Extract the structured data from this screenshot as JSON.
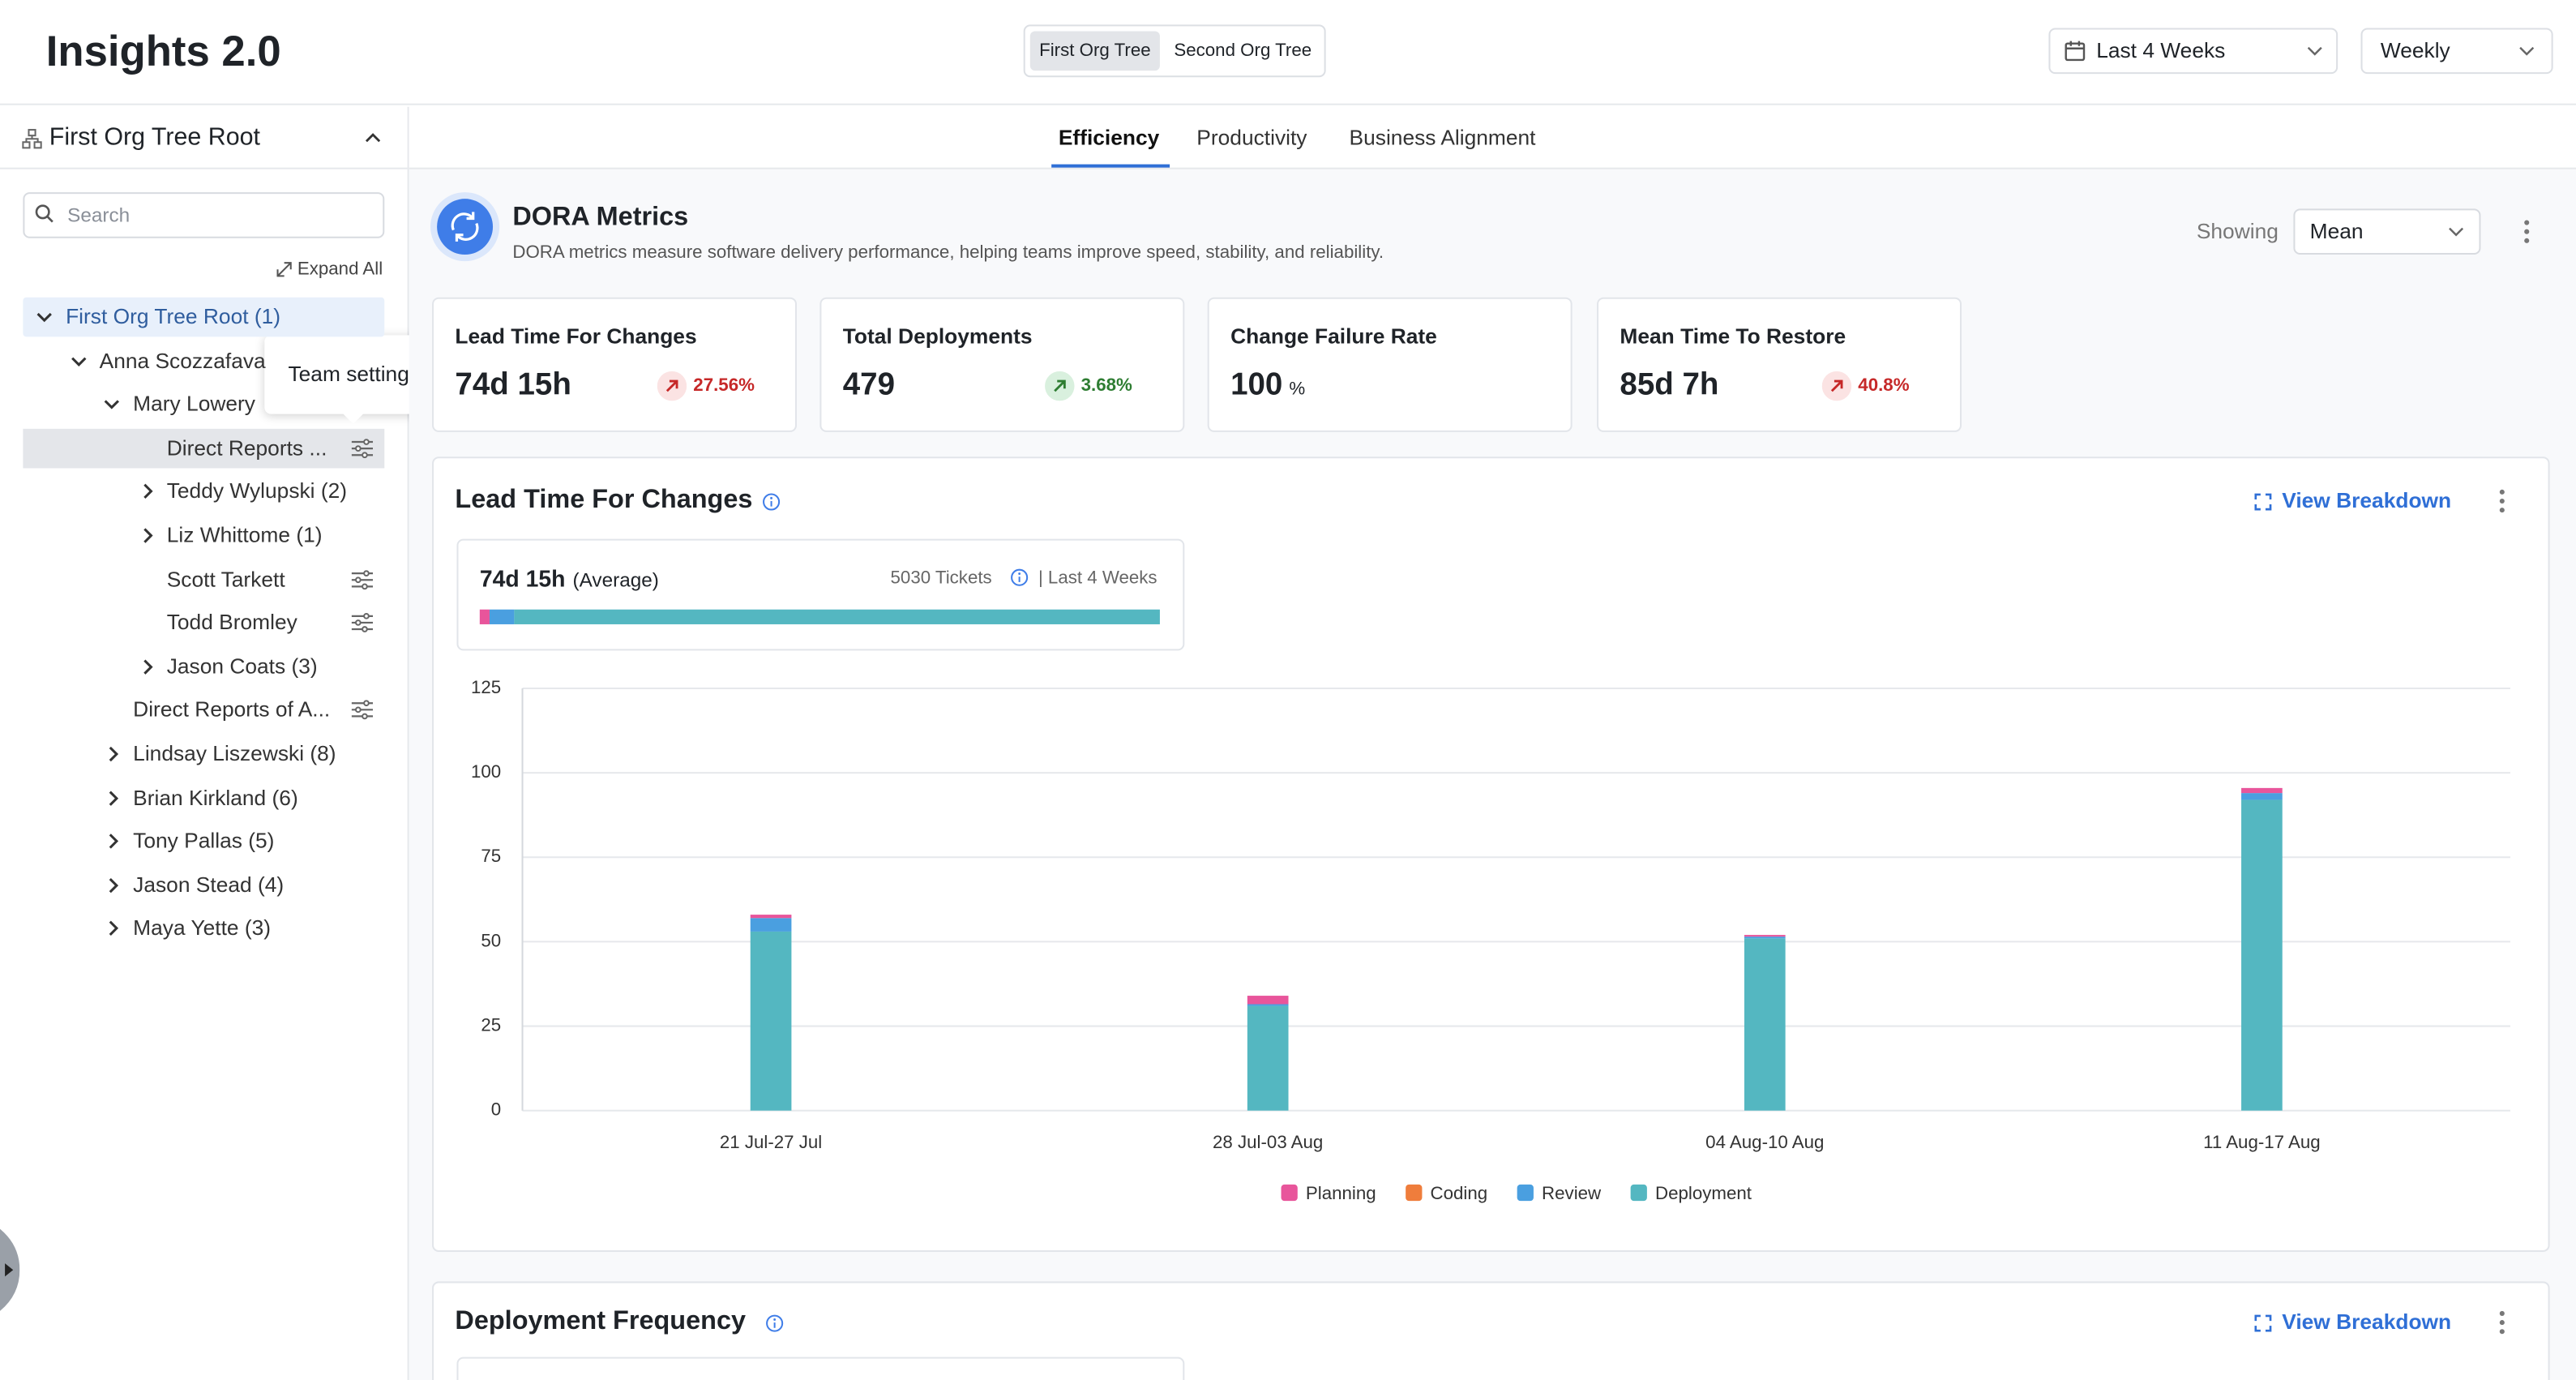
{
  "header": {
    "title": "Insights 2.0",
    "org_toggle": [
      "First Org Tree",
      "Second Org Tree"
    ],
    "date_range": "Last 4 Weeks",
    "interval": "Weekly"
  },
  "sidebar": {
    "root": "First Org Tree Root",
    "search_placeholder": "Search",
    "expand_all": "Expand All",
    "tooltip": "Team settings",
    "tree": [
      {
        "label": "First Org Tree Root (1)",
        "depth": 0,
        "expander": "open",
        "active": true
      },
      {
        "label": "Anna Scozzafava",
        "depth": 1,
        "expander": "open"
      },
      {
        "label": "Mary Lowery",
        "depth": 2,
        "expander": "open"
      },
      {
        "label": "Direct Reports ...",
        "depth": 3,
        "settings": true,
        "selected": true
      },
      {
        "label": "Teddy Wylupski (2)",
        "depth": 3,
        "expander": "closed"
      },
      {
        "label": "Liz Whittome (1)",
        "depth": 3,
        "expander": "closed"
      },
      {
        "label": "Scott Tarkett",
        "depth": 3,
        "settings": true
      },
      {
        "label": "Todd Bromley",
        "depth": 3,
        "settings": true
      },
      {
        "label": "Jason Coats (3)",
        "depth": 3,
        "expander": "closed"
      },
      {
        "label": "Direct Reports of A...",
        "depth": 2,
        "settings": true
      },
      {
        "label": "Lindsay Liszewski (8)",
        "depth": 2,
        "expander": "closed"
      },
      {
        "label": "Brian Kirkland (6)",
        "depth": 2,
        "expander": "closed"
      },
      {
        "label": "Tony Pallas (5)",
        "depth": 2,
        "expander": "closed"
      },
      {
        "label": "Jason Stead (4)",
        "depth": 2,
        "expander": "closed"
      },
      {
        "label": "Maya Yette (3)",
        "depth": 2,
        "expander": "closed"
      }
    ]
  },
  "tabs": [
    {
      "label": "Efficiency",
      "active": true
    },
    {
      "label": "Productivity"
    },
    {
      "label": "Business Alignment"
    }
  ],
  "dora": {
    "title": "DORA Metrics",
    "description": "DORA metrics measure software delivery performance, helping teams improve speed, stability, and reliability.",
    "showing_label": "Showing",
    "showing_value": "Mean",
    "metrics": [
      {
        "name": "Lead Time For Changes",
        "value": "74d 15h",
        "change": "27.56%",
        "trend": "bad"
      },
      {
        "name": "Total Deployments",
        "value": "479",
        "change": "3.68%",
        "trend": "good"
      },
      {
        "name": "Change Failure Rate",
        "value": "100",
        "unit": "%"
      },
      {
        "name": "Mean Time To Restore",
        "value": "85d 7h",
        "change": "40.8%",
        "trend": "bad"
      }
    ]
  },
  "lead_time": {
    "title": "Lead Time For Changes",
    "view_breakdown": "View Breakdown",
    "summary": {
      "value": "74d 15h",
      "qualifier": "(Average)",
      "tickets": "5030 Tickets",
      "period": "| Last 4 Weeks",
      "segments": [
        {
          "color": "#e8559b",
          "value": 1.5
        },
        {
          "color": "#4a9fe0",
          "value": 3.5
        },
        {
          "color": "#54b7c1",
          "value": 95
        }
      ]
    },
    "chart": {
      "type": "bar",
      "stacked": true,
      "categories": [
        "21 Jul-27 Jul",
        "28 Jul-03 Aug",
        "04 Aug-10 Aug",
        "11 Aug-17 Aug"
      ],
      "series": [
        {
          "name": "Planning",
          "color": "#e8559b",
          "values": [
            1,
            2.5,
            0.5,
            1.5
          ]
        },
        {
          "name": "Coding",
          "color": "#ef7d3c",
          "values": [
            0,
            0,
            0,
            0
          ]
        },
        {
          "name": "Review",
          "color": "#4a9fe0",
          "values": [
            4,
            0.5,
            0.5,
            2
          ]
        },
        {
          "name": "Deployment",
          "color": "#54b7c1",
          "values": [
            53,
            31,
            51,
            92
          ]
        }
      ],
      "ylim": [
        0,
        125
      ],
      "yticks": [
        0,
        25,
        50,
        75,
        100,
        125
      ],
      "grid": true
    }
  },
  "deployment_frequency": {
    "title": "Deployment Frequency",
    "view_breakdown": "View Breakdown"
  }
}
